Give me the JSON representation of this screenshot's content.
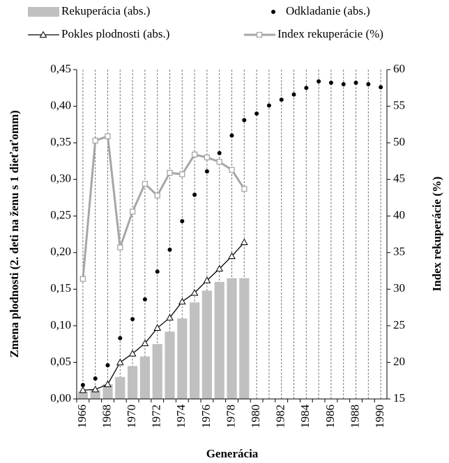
{
  "chart_data": {
    "type": "combo",
    "categories": [
      "1966",
      null,
      "1968",
      null,
      "1970",
      null,
      "1972",
      null,
      "1974",
      null,
      "1976",
      null,
      "1978",
      null,
      "1980",
      null,
      "1982",
      null,
      "1984",
      null,
      "1986",
      null,
      "1988",
      null,
      "1990"
    ],
    "xlabel": "Generácia",
    "ylabel": "Zmena plodnosti (2. deti na ženu s 1 dieťaťomm)",
    "y2label": "Index rekuperácie (%)",
    "ylim": [
      0,
      0.45
    ],
    "yticks": [
      {
        "value": 0,
        "label": "0,00"
      },
      {
        "value": 0.05,
        "label": "0,05"
      },
      {
        "value": 0.1,
        "label": "0,10"
      },
      {
        "value": 0.15,
        "label": "0,15"
      },
      {
        "value": 0.2,
        "label": "0,20"
      },
      {
        "value": 0.25,
        "label": "0,25"
      },
      {
        "value": 0.3,
        "label": "0,30"
      },
      {
        "value": 0.35,
        "label": "0,35"
      },
      {
        "value": 0.4,
        "label": "0,40"
      },
      {
        "value": 0.45,
        "label": "0,45"
      }
    ],
    "y2lim": [
      15,
      60
    ],
    "y2ticks": [
      15,
      20,
      25,
      30,
      35,
      40,
      45,
      50,
      55,
      60
    ],
    "grid": true,
    "series": [
      {
        "name": "Rekuperácia (abs.)",
        "kind": "bar",
        "color": "#c0c0c0",
        "values": [
          0.01,
          0.012,
          0.02,
          0.03,
          0.045,
          0.058,
          0.075,
          0.092,
          0.11,
          0.132,
          0.148,
          0.16,
          0.165,
          0.165,
          null,
          null,
          null,
          null,
          null,
          null,
          null,
          null,
          null,
          null,
          null
        ]
      },
      {
        "name": "Odkladanie (abs.)",
        "kind": "dot",
        "color": "#000000",
        "values": [
          0.019,
          0.028,
          0.046,
          0.083,
          0.109,
          0.136,
          0.174,
          0.204,
          0.243,
          0.279,
          0.311,
          0.336,
          0.36,
          0.381,
          0.39,
          0.401,
          0.409,
          0.416,
          0.425,
          0.434,
          0.432,
          0.43,
          0.432,
          0.43,
          0.426
        ]
      },
      {
        "name": "Pokles plodnosti (abs.)",
        "kind": "line-triangle",
        "color": "#000000",
        "values": [
          0.012,
          0.013,
          0.02,
          0.05,
          0.062,
          0.076,
          0.097,
          0.111,
          0.133,
          0.145,
          0.162,
          0.178,
          0.195,
          0.214,
          null,
          null,
          null,
          null,
          null,
          null,
          null,
          null,
          null,
          null,
          null
        ]
      },
      {
        "name": "Index rekuperácie (%)",
        "kind": "line-square",
        "color": "#a6a6a6",
        "axis": "y2",
        "values": [
          31.4,
          50.3,
          50.9,
          35.7,
          40.6,
          44.4,
          42.8,
          45.9,
          45.7,
          48.4,
          48.0,
          47.4,
          46.3,
          43.7,
          null,
          null,
          null,
          null,
          null,
          null,
          null,
          null,
          null,
          null,
          null
        ]
      }
    ]
  }
}
